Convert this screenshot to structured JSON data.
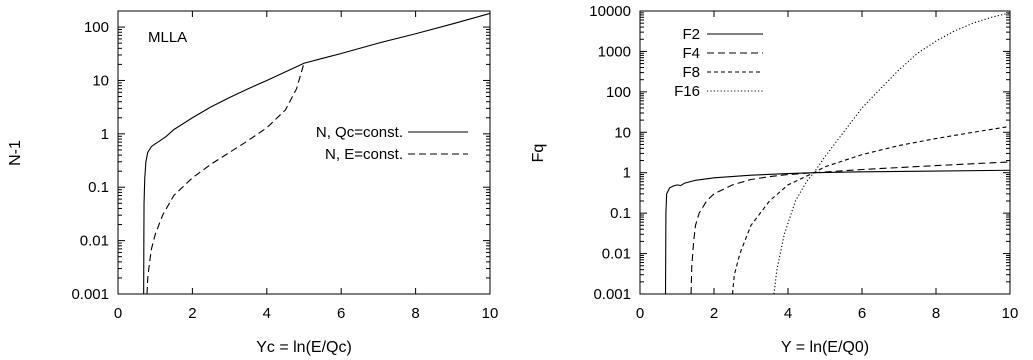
{
  "chart_data": [
    {
      "type": "line",
      "title": "",
      "xlabel": "Yc = ln(E/Qc)",
      "ylabel": "N-1",
      "xlim": [
        0,
        10
      ],
      "ylim": [
        0.001,
        200
      ],
      "yscale": "log",
      "grid": false,
      "legend_position": "right",
      "annotation": "MLLA",
      "xticks": [
        0,
        2,
        4,
        6,
        8,
        10
      ],
      "xtick_labels": [
        "0",
        "2",
        "4",
        "6",
        "8",
        "10"
      ],
      "yticks": [
        0.001,
        0.01,
        0.1,
        1,
        10,
        100
      ],
      "ytick_labels": [
        "0.001",
        "0.01",
        "0.1",
        "1",
        "10",
        "100"
      ],
      "series": [
        {
          "name": "N, Qc=const.",
          "dash": "solid",
          "points": [
            [
              0.69,
              0.001
            ],
            [
              0.695,
              0.01
            ],
            [
              0.7,
              0.05
            ],
            [
              0.72,
              0.15
            ],
            [
              0.75,
              0.3
            ],
            [
              0.8,
              0.45
            ],
            [
              0.9,
              0.58
            ],
            [
              1.0,
              0.65
            ],
            [
              1.1,
              0.72
            ],
            [
              1.3,
              0.9
            ],
            [
              1.5,
              1.2
            ],
            [
              2.0,
              2.0
            ],
            [
              2.5,
              3.2
            ],
            [
              3.0,
              4.8
            ],
            [
              3.5,
              7.0
            ],
            [
              4.0,
              10.0
            ],
            [
              4.5,
              14.5
            ],
            [
              5.0,
              21.0
            ],
            [
              5.5,
              26.0
            ],
            [
              6.0,
              32.0
            ],
            [
              7.0,
              50.0
            ],
            [
              8.0,
              75.0
            ],
            [
              9.0,
              115.0
            ],
            [
              10.0,
              180.0
            ]
          ]
        },
        {
          "name": "N,   E=const.",
          "dash": "dashed",
          "points": [
            [
              0.78,
              0.001
            ],
            [
              0.8,
              0.002
            ],
            [
              0.85,
              0.004
            ],
            [
              0.9,
              0.007
            ],
            [
              1.0,
              0.013
            ],
            [
              1.2,
              0.03
            ],
            [
              1.5,
              0.07
            ],
            [
              2.0,
              0.15
            ],
            [
              2.5,
              0.27
            ],
            [
              3.0,
              0.45
            ],
            [
              3.5,
              0.75
            ],
            [
              4.0,
              1.3
            ],
            [
              4.5,
              2.8
            ],
            [
              4.8,
              7.0
            ],
            [
              5.0,
              21.0
            ]
          ]
        }
      ]
    },
    {
      "type": "line",
      "title": "",
      "xlabel": "Y = ln(E/Q0)",
      "ylabel": "Fq",
      "xlim": [
        0,
        10
      ],
      "ylim": [
        0.001,
        10000
      ],
      "yscale": "log",
      "grid": false,
      "legend_position": "top-left",
      "xticks": [
        0,
        2,
        4,
        6,
        8,
        10
      ],
      "xtick_labels": [
        "0",
        "2",
        "4",
        "6",
        "8",
        "10"
      ],
      "yticks": [
        0.001,
        0.01,
        0.1,
        1,
        10,
        100,
        1000,
        10000
      ],
      "ytick_labels": [
        "0.001",
        "0.01",
        "0.1",
        "1",
        "10",
        "100",
        "1000",
        "10000"
      ],
      "series": [
        {
          "name": "F2",
          "dash": "solid",
          "points": [
            [
              0.69,
              0.001
            ],
            [
              0.695,
              0.01
            ],
            [
              0.7,
              0.1
            ],
            [
              0.72,
              0.3
            ],
            [
              0.8,
              0.42
            ],
            [
              0.9,
              0.47
            ],
            [
              1.0,
              0.5
            ],
            [
              1.1,
              0.48
            ],
            [
              1.2,
              0.55
            ],
            [
              1.5,
              0.65
            ],
            [
              2.0,
              0.75
            ],
            [
              3.0,
              0.87
            ],
            [
              4.0,
              0.95
            ],
            [
              4.7,
              1.0
            ],
            [
              6.0,
              1.05
            ],
            [
              8.0,
              1.1
            ],
            [
              10.0,
              1.15
            ]
          ]
        },
        {
          "name": "F4",
          "dash": "dashed",
          "points": [
            [
              1.38,
              0.001
            ],
            [
              1.4,
              0.005
            ],
            [
              1.45,
              0.02
            ],
            [
              1.5,
              0.05
            ],
            [
              1.6,
              0.1
            ],
            [
              1.8,
              0.2
            ],
            [
              2.0,
              0.3
            ],
            [
              2.5,
              0.5
            ],
            [
              3.0,
              0.68
            ],
            [
              3.5,
              0.8
            ],
            [
              4.0,
              0.9
            ],
            [
              4.7,
              1.0
            ],
            [
              6.0,
              1.2
            ],
            [
              8.0,
              1.5
            ],
            [
              10.0,
              1.85
            ]
          ]
        },
        {
          "name": "F8",
          "dash": "short-dashed",
          "points": [
            [
              2.5,
              0.001
            ],
            [
              2.55,
              0.003
            ],
            [
              2.7,
              0.01
            ],
            [
              3.0,
              0.05
            ],
            [
              3.5,
              0.2
            ],
            [
              4.0,
              0.5
            ],
            [
              4.7,
              1.0
            ],
            [
              5.0,
              1.4
            ],
            [
              6.0,
              2.8
            ],
            [
              7.0,
              4.7
            ],
            [
              8.0,
              7.0
            ],
            [
              9.0,
              10.0
            ],
            [
              10.0,
              14.0
            ]
          ]
        },
        {
          "name": "F16",
          "dash": "dotted",
          "points": [
            [
              3.62,
              0.001
            ],
            [
              3.7,
              0.004
            ],
            [
              3.9,
              0.03
            ],
            [
              4.2,
              0.2
            ],
            [
              4.5,
              0.6
            ],
            [
              4.7,
              1.0
            ],
            [
              5.0,
              2.5
            ],
            [
              5.5,
              10.0
            ],
            [
              6.0,
              40.0
            ],
            [
              6.5,
              120.0
            ],
            [
              7.0,
              350.0
            ],
            [
              7.5,
              900.0
            ],
            [
              8.0,
              1800.0
            ],
            [
              8.5,
              3200.0
            ],
            [
              9.0,
              5000.0
            ],
            [
              9.5,
              7000.0
            ],
            [
              10.0,
              9000.0
            ]
          ]
        }
      ]
    }
  ]
}
